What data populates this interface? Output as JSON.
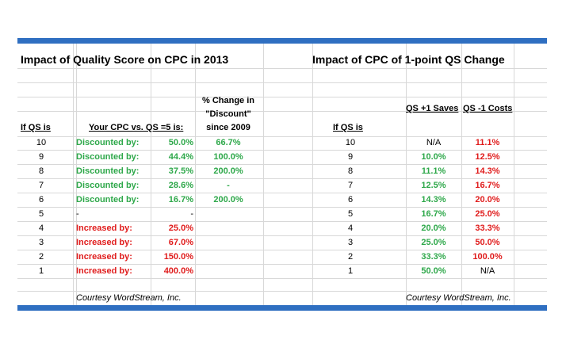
{
  "left": {
    "title": "Impact of Quality Score on CPC in 2013",
    "headers": {
      "qs": "If QS is",
      "cpc": "Your CPC vs. QS =5 is:",
      "change_line1": "% Change in",
      "change_line2": "\"Discount\"",
      "change_line3": "since 2009"
    },
    "rows": [
      {
        "qs": "10",
        "label": "Discounted by:",
        "value": "50.0%",
        "change": "66.7%",
        "tone": "green"
      },
      {
        "qs": "9",
        "label": "Discounted by:",
        "value": "44.4%",
        "change": "100.0%",
        "tone": "green"
      },
      {
        "qs": "8",
        "label": "Discounted by:",
        "value": "37.5%",
        "change": "200.0%",
        "tone": "green"
      },
      {
        "qs": "7",
        "label": "Discounted by:",
        "value": "28.6%",
        "change": "-",
        "tone": "green"
      },
      {
        "qs": "6",
        "label": "Discounted by:",
        "value": "16.7%",
        "change": "200.0%",
        "tone": "green"
      },
      {
        "qs": "5",
        "label": "-",
        "value": "-",
        "change": "",
        "tone": "plain"
      },
      {
        "qs": "4",
        "label": "Increased by:",
        "value": "25.0%",
        "change": "",
        "tone": "red"
      },
      {
        "qs": "3",
        "label": "Increased by:",
        "value": "67.0%",
        "change": "",
        "tone": "red"
      },
      {
        "qs": "2",
        "label": "Increased by:",
        "value": "150.0%",
        "change": "",
        "tone": "red"
      },
      {
        "qs": "1",
        "label": "Increased by:",
        "value": "400.0%",
        "change": "",
        "tone": "red"
      }
    ],
    "courtesy": "Courtesy WordStream, Inc."
  },
  "right": {
    "title": "Impact of CPC of 1-point QS Change",
    "headers": {
      "qs": "If QS is",
      "saves": "QS +1 Saves",
      "costs": "QS -1 Costs"
    },
    "rows": [
      {
        "qs": "10",
        "saves": "N/A",
        "saves_tone": "plain",
        "costs": "11.1%",
        "costs_tone": "red"
      },
      {
        "qs": "9",
        "saves": "10.0%",
        "saves_tone": "green",
        "costs": "12.5%",
        "costs_tone": "red"
      },
      {
        "qs": "8",
        "saves": "11.1%",
        "saves_tone": "green",
        "costs": "14.3%",
        "costs_tone": "red"
      },
      {
        "qs": "7",
        "saves": "12.5%",
        "saves_tone": "green",
        "costs": "16.7%",
        "costs_tone": "red"
      },
      {
        "qs": "6",
        "saves": "14.3%",
        "saves_tone": "green",
        "costs": "20.0%",
        "costs_tone": "red"
      },
      {
        "qs": "5",
        "saves": "16.7%",
        "saves_tone": "green",
        "costs": "25.0%",
        "costs_tone": "red"
      },
      {
        "qs": "4",
        "saves": "20.0%",
        "saves_tone": "green",
        "costs": "33.3%",
        "costs_tone": "red"
      },
      {
        "qs": "3",
        "saves": "25.0%",
        "saves_tone": "green",
        "costs": "50.0%",
        "costs_tone": "red"
      },
      {
        "qs": "2",
        "saves": "33.3%",
        "saves_tone": "green",
        "costs": "100.0%",
        "costs_tone": "red"
      },
      {
        "qs": "1",
        "saves": "50.0%",
        "saves_tone": "green",
        "costs": "N/A",
        "costs_tone": "plain"
      }
    ],
    "courtesy": "Courtesy WordStream, Inc."
  },
  "colors": {
    "accent_bar": "#2f6fc1",
    "positive": "#2ea84a",
    "negative": "#e01c1c",
    "gridline": "#d8d8d8"
  }
}
